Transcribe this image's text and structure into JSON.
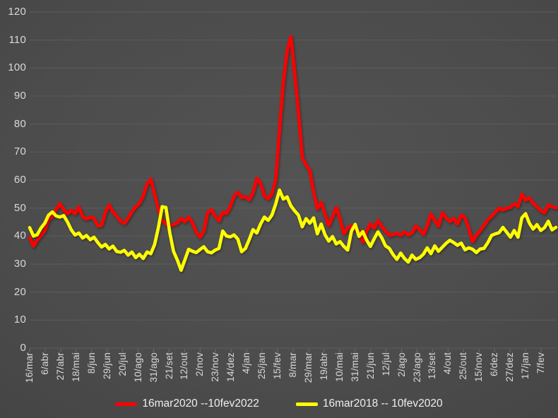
{
  "chart_data": {
    "type": "line",
    "title": "",
    "xlabel": "",
    "ylabel": "",
    "ylim": [
      0,
      120
    ],
    "y_ticks": [
      0,
      10,
      20,
      30,
      40,
      50,
      60,
      70,
      80,
      90,
      100,
      110,
      120
    ],
    "grid": true,
    "legend_position": "bottom",
    "x_tick_interval_days": 21,
    "sampling_interval_days": 5,
    "x_tick_labels": [
      "16/mar",
      "6/abr",
      "27/abr",
      "18/mai",
      "8/jun",
      "29/jun",
      "20/jul",
      "10/ago",
      "31/ago",
      "21/set",
      "12/out",
      "2/nov",
      "23/nov",
      "14/dez",
      "4/jan",
      "25/jan",
      "15/fev",
      "8/mar",
      "29/mar",
      "19/abr",
      "10/mai",
      "31/mai",
      "21/jun",
      "12/jul",
      "2/ago",
      "23/ago",
      "13/set",
      "4/out",
      "25/out",
      "15/nov",
      "6/dez",
      "27/dez",
      "17/jan",
      "7/fev"
    ],
    "series": [
      {
        "name": "16mar2020 --10fev2022",
        "color": "#fe0000",
        "values": [
          39.5,
          36.4,
          38.6,
          40.2,
          42.0,
          45.8,
          47.0,
          49.6,
          51.6,
          49.4,
          48.0,
          49.2,
          48.0,
          50.4,
          46.9,
          46.1,
          46.8,
          46.4,
          43.6,
          43.9,
          48.4,
          51.2,
          48.6,
          47.0,
          45.4,
          44.5,
          46.4,
          48.6,
          50.5,
          51.6,
          54.4,
          58.6,
          60.4,
          54.9,
          49.4,
          45.6,
          44.3,
          43.6,
          44.2,
          44.6,
          46.3,
          45.1,
          46.8,
          44.7,
          41.4,
          39.6,
          41.6,
          48.4,
          49.4,
          47.1,
          45.4,
          48.4,
          48.1,
          50.6,
          54.3,
          55.6,
          53.8,
          54.1,
          52.9,
          55.4,
          60.6,
          58.9,
          54.4,
          53.3,
          55.1,
          60.1,
          78.0,
          94.9,
          106.1,
          111.2,
          98.1,
          84.2,
          68.1,
          65.4,
          63.4,
          55.7,
          49.8,
          52.0,
          47.9,
          43.8,
          46.9,
          50.2,
          45.9,
          40.9,
          42.9,
          43.6,
          42.3,
          41.6,
          37.9,
          41.8,
          44.4,
          42.8,
          45.6,
          43.4,
          41.8,
          40.3,
          40.6,
          41.0,
          40.3,
          41.5,
          40.4,
          41.1,
          43.6,
          42.3,
          40.6,
          43.6,
          47.9,
          45.6,
          43.6,
          48.3,
          46.5,
          45.2,
          46.3,
          44.3,
          47.5,
          46.5,
          42.5,
          38.1,
          40.3,
          41.9,
          43.8,
          45.8,
          47.0,
          48.5,
          50.0,
          49.3,
          50.0,
          50.3,
          51.5,
          50.6,
          54.9,
          52.9,
          53.6,
          51.7,
          50.4,
          49.1,
          48.3,
          51.2,
          50.5,
          50.1
        ]
      },
      {
        "name": "16mar2018 -- 10fev2020",
        "color": "#feff00",
        "values": [
          43.0,
          40.0,
          40.5,
          42.9,
          44.6,
          47.5,
          48.6,
          47.2,
          46.8,
          47.3,
          45.0,
          42.2,
          40.4,
          41.1,
          39.3,
          40.2,
          38.7,
          39.6,
          37.7,
          36.1,
          37.0,
          35.4,
          36.4,
          34.5,
          34.2,
          34.9,
          33.2,
          34.3,
          32.3,
          33.5,
          32.0,
          34.3,
          33.7,
          37.0,
          43.0,
          50.5,
          50.2,
          41.3,
          34.5,
          31.5,
          27.8,
          31.5,
          35.3,
          34.6,
          34.1,
          35.2,
          36.2,
          34.4,
          34.0,
          35.0,
          35.6,
          41.8,
          40.0,
          39.7,
          40.4,
          38.9,
          34.4,
          35.6,
          38.8,
          42.3,
          41.1,
          44.3,
          46.8,
          45.6,
          47.5,
          51.5,
          56.4,
          53.2,
          54.0,
          50.8,
          49.0,
          47.5,
          43.3,
          46.2,
          44.6,
          46.5,
          40.8,
          44.3,
          40.5,
          38.2,
          39.8,
          37.2,
          38.0,
          36.3,
          35.0,
          41.8,
          44.2,
          39.9,
          41.6,
          38.6,
          36.3,
          39.0,
          41.5,
          39.4,
          36.5,
          35.6,
          33.4,
          31.7,
          33.9,
          32.0,
          30.7,
          33.2,
          31.7,
          32.3,
          33.5,
          35.8,
          33.7,
          36.5,
          34.6,
          36.0,
          37.4,
          38.5,
          37.7,
          36.7,
          37.5,
          35.1,
          35.8,
          35.3,
          34.1,
          35.4,
          35.6,
          37.6,
          40.2,
          40.8,
          41.2,
          43.1,
          41.4,
          39.6,
          42.0,
          39.6,
          46.5,
          48.0,
          44.6,
          42.5,
          44.1,
          42.0,
          43.0,
          45.3,
          42.2,
          43.1
        ]
      }
    ],
    "colors": {
      "background": "#484848",
      "gridline": "#5d5d5d",
      "axis_text": "#d9d9d9",
      "legend_text": "#efefef"
    }
  }
}
